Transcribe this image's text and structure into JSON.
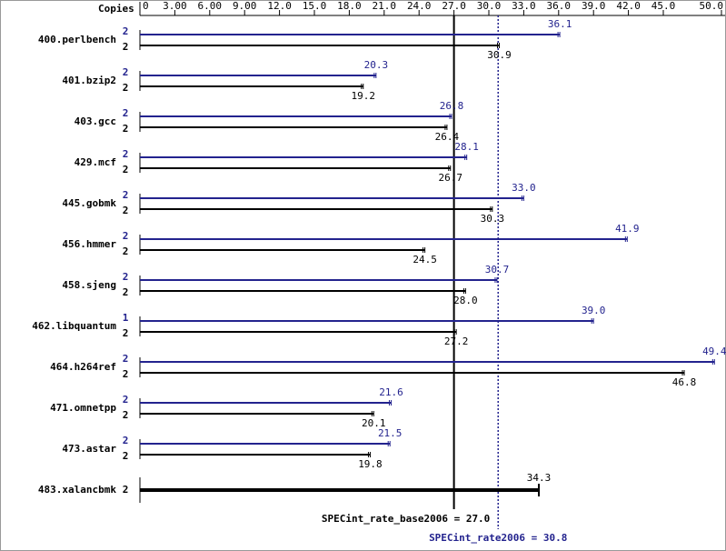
{
  "chart_data": {
    "type": "bar",
    "orientation": "horizontal",
    "x_label": "Copies",
    "xlim": [
      0,
      50
    ],
    "xticks": [
      0,
      {
        "value": 3,
        "label": "3.00"
      },
      {
        "value": 6,
        "label": "6.00"
      },
      {
        "value": 9,
        "label": "9.00"
      },
      {
        "value": 12,
        "label": "12.0"
      },
      {
        "value": 15,
        "label": "15.0"
      },
      {
        "value": 18,
        "label": "18.0"
      },
      {
        "value": 21,
        "label": "21.0"
      },
      {
        "value": 24,
        "label": "24.0"
      },
      {
        "value": 27,
        "label": "27.0"
      },
      {
        "value": 30,
        "label": "30.0"
      },
      {
        "value": 33,
        "label": "33.0"
      },
      {
        "value": 36,
        "label": "36.0"
      },
      {
        "value": 39,
        "label": "39.0"
      },
      {
        "value": 42,
        "label": "42.0"
      },
      {
        "value": 45,
        "label": "45.0"
      },
      {
        "value": 50,
        "label": "50.0"
      }
    ],
    "categories": [
      "400.perlbench",
      "401.bzip2",
      "403.gcc",
      "429.mcf",
      "445.gobmk",
      "456.hmmer",
      "458.sjeng",
      "462.libquantum",
      "464.h264ref",
      "471.omnetpp",
      "473.astar",
      "483.xalancbmk"
    ],
    "series": [
      {
        "color": "#23238e",
        "copies": [
          2,
          2,
          2,
          2,
          2,
          2,
          2,
          1,
          2,
          2,
          2,
          null
        ],
        "values": [
          36.1,
          20.3,
          26.8,
          28.1,
          33.0,
          41.9,
          30.7,
          39.0,
          49.4,
          21.6,
          21.5,
          null
        ],
        "value_labels": [
          "36.1",
          "20.3",
          "26.8",
          "28.1",
          "33.0",
          "41.9",
          "30.7",
          "39.0",
          "49.4",
          "21.6",
          "21.5",
          null
        ]
      },
      {
        "color": "#000000",
        "copies": [
          2,
          2,
          2,
          2,
          2,
          2,
          2,
          2,
          2,
          2,
          2,
          2
        ],
        "values": [
          30.9,
          19.2,
          26.4,
          26.7,
          30.3,
          24.5,
          28.0,
          27.2,
          46.8,
          20.1,
          19.8,
          34.3
        ],
        "value_labels": [
          "30.9",
          "19.2",
          "26.4",
          "26.7",
          "30.3",
          "24.5",
          "28.0",
          "27.2",
          "46.8",
          "20.1",
          "19.8",
          "34.3"
        ]
      }
    ],
    "reference_lines": [
      {
        "label": "SPECint_rate_base2006 = 27.0",
        "value": 27.0,
        "color": "#000000",
        "style": "solid"
      },
      {
        "label": "SPECint_rate2006 = 30.8",
        "value": 30.8,
        "color": "#23238e",
        "style": "dotted"
      }
    ]
  }
}
